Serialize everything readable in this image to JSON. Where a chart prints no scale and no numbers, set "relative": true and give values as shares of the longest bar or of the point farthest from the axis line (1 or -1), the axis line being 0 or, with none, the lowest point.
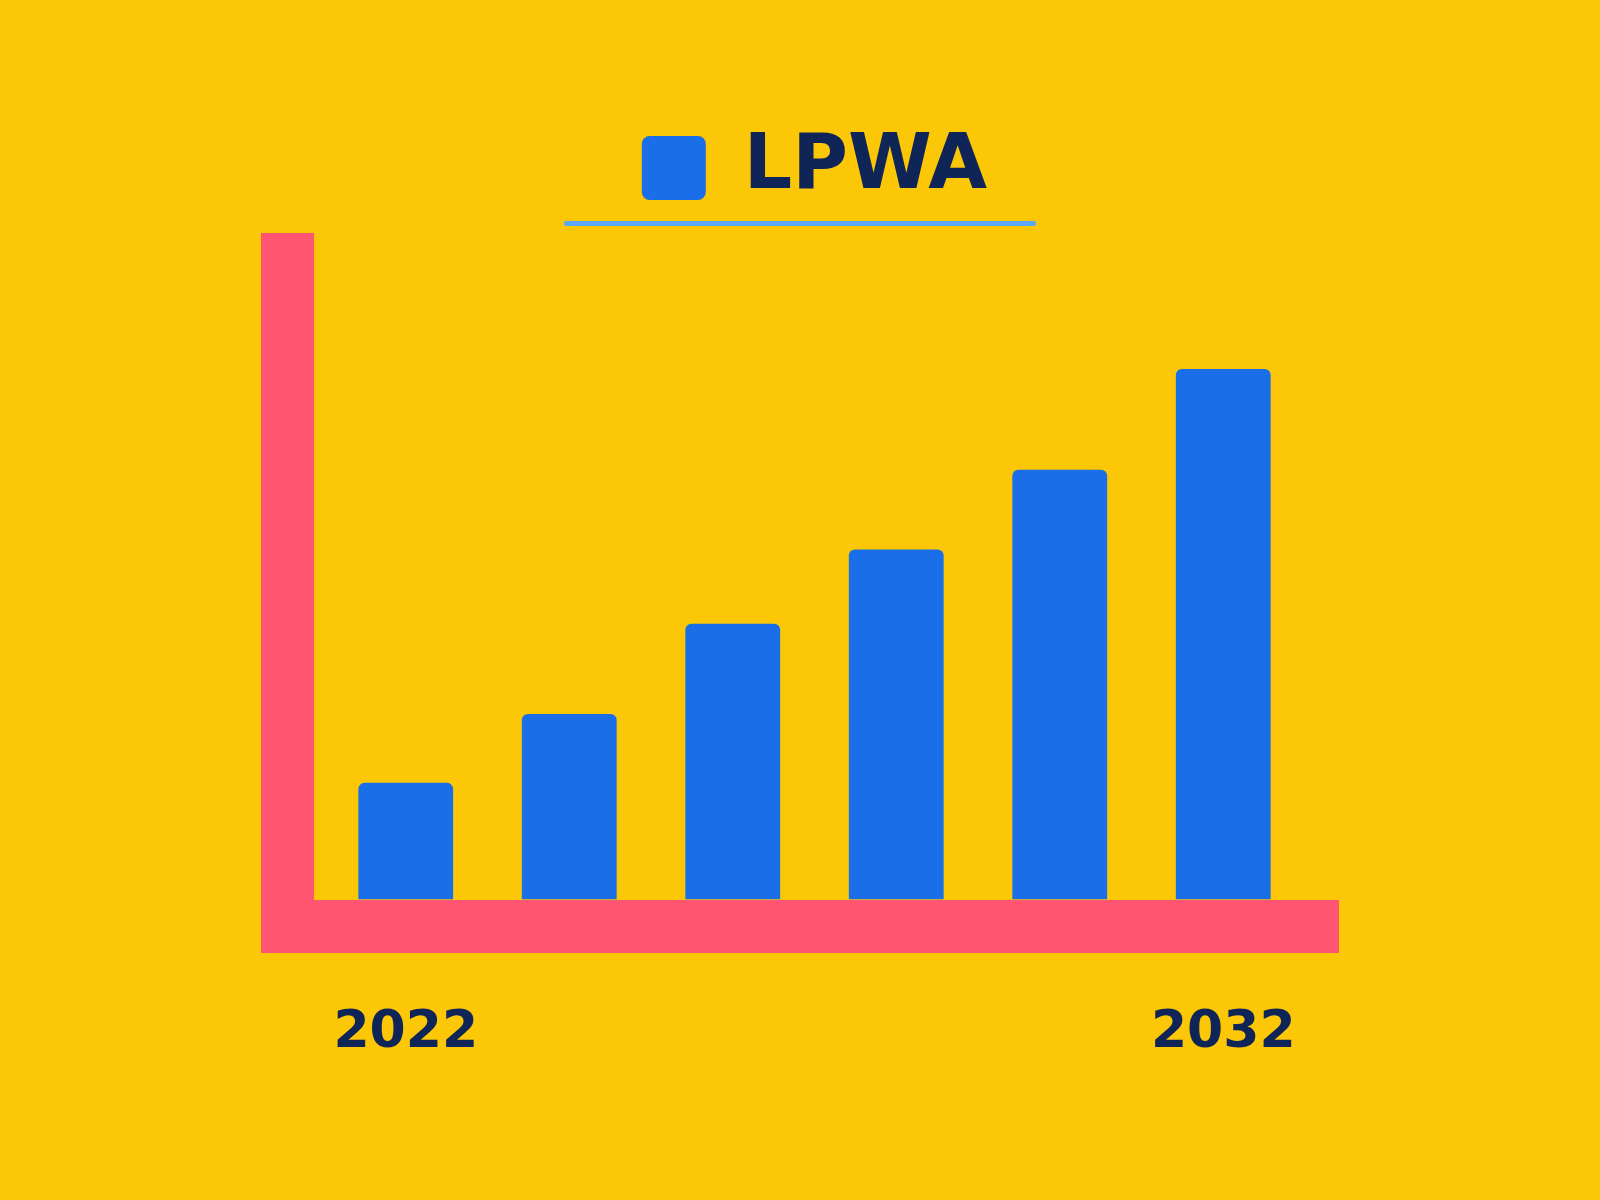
{
  "chart_data": {
    "type": "bar",
    "relative": true,
    "legend": "top",
    "categories": [
      "2022",
      null,
      null,
      null,
      null,
      "2032"
    ],
    "series": [
      {
        "name": "LPWA",
        "color": "#1a6ee8",
        "values": [
          0.22,
          0.35,
          0.52,
          0.66,
          0.81,
          1
        ]
      }
    ]
  }
}
